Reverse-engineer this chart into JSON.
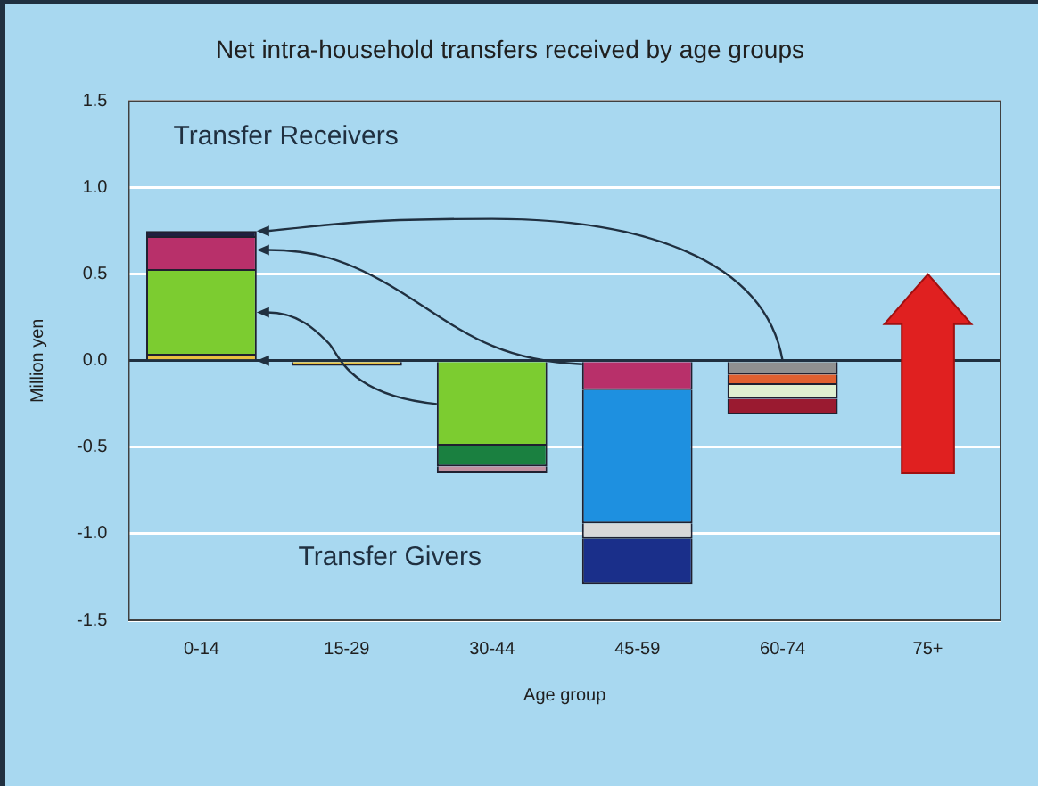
{
  "chart_data": {
    "type": "bar",
    "stacked": true,
    "title": "Net intra-household transfers received by age groups",
    "xlabel": "Age group",
    "ylabel": "Million yen",
    "categories": [
      "0-14",
      "15-29",
      "30-44",
      "45-59",
      "60-74",
      "75+"
    ],
    "series": [
      {
        "color": "#e8c040",
        "values": [
          0.04,
          -0.03,
          null,
          null,
          null,
          null
        ]
      },
      {
        "color": "#7ccc30",
        "values": [
          0.49,
          null,
          -0.49,
          null,
          null,
          null
        ]
      },
      {
        "color": "#b8306a",
        "values": [
          0.19,
          null,
          null,
          -0.17,
          null,
          null
        ]
      },
      {
        "color": "#202040",
        "values": [
          0.03,
          null,
          null,
          null,
          null,
          null
        ]
      },
      {
        "color": "#1a8040",
        "values": [
          null,
          null,
          -0.12,
          null,
          null,
          null
        ]
      },
      {
        "color": "#c090a0",
        "values": [
          null,
          null,
          -0.04,
          null,
          null,
          null
        ]
      },
      {
        "color": "#1e90e0",
        "values": [
          null,
          null,
          null,
          -0.77,
          null,
          null
        ]
      },
      {
        "color": "#d8d8d8",
        "values": [
          null,
          null,
          null,
          -0.09,
          null,
          null
        ]
      },
      {
        "color": "#1a2f8a",
        "values": [
          null,
          null,
          null,
          -0.26,
          null,
          null
        ]
      },
      {
        "color": "#909090",
        "values": [
          null,
          null,
          null,
          null,
          -0.08,
          null
        ]
      },
      {
        "color": "#e06030",
        "values": [
          null,
          null,
          null,
          null,
          -0.06,
          null
        ]
      },
      {
        "color": "#e0f0d0",
        "values": [
          null,
          null,
          null,
          null,
          -0.08,
          null
        ]
      },
      {
        "color": "#9a1a30",
        "values": [
          null,
          null,
          null,
          null,
          -0.09,
          null
        ]
      }
    ],
    "ylim": [
      -1.5,
      1.5
    ],
    "yticks": [
      {
        "value": -1.5,
        "label": "-1.5"
      },
      {
        "value": -1,
        "label": "-1.0"
      },
      {
        "value": -0.5,
        "label": "-0.5"
      },
      {
        "value": 0,
        "label": "0.0"
      },
      {
        "value": 0.5,
        "label": "0.5"
      },
      {
        "value": 1,
        "label": "1.0"
      },
      {
        "value": 1.5,
        "label": "1.5"
      }
    ],
    "grid": "y",
    "legend": false,
    "annotations": [
      "Transfer Receivers",
      "Transfer Givers"
    ]
  }
}
